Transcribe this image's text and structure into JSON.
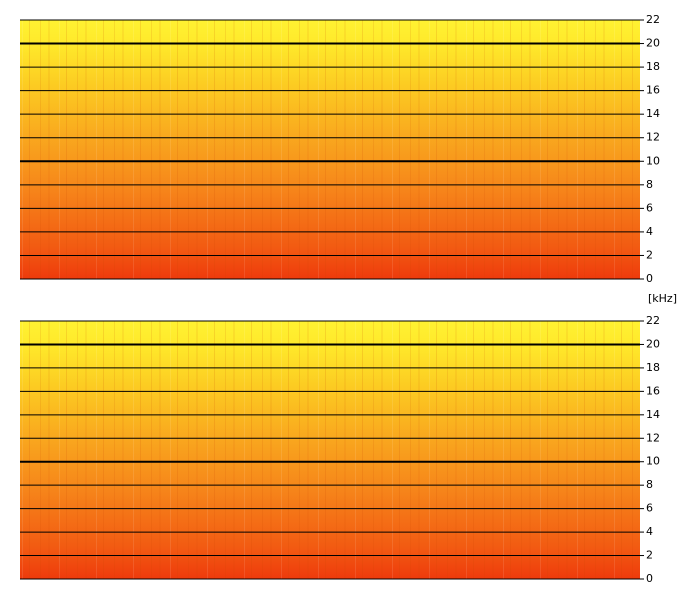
{
  "chart_data": [
    {
      "type": "spectrogram",
      "y_label": "[kHz]",
      "ylim": [
        0,
        22
      ],
      "yticks": [
        0,
        2,
        4,
        6,
        8,
        10,
        12,
        14,
        16,
        18,
        20,
        22
      ],
      "grid": true
    },
    {
      "type": "spectrogram",
      "ylim": [
        0,
        22
      ],
      "yticks": [
        0,
        2,
        4,
        6,
        8,
        10,
        12,
        14,
        16,
        18,
        20,
        22
      ],
      "grid": true
    }
  ]
}
